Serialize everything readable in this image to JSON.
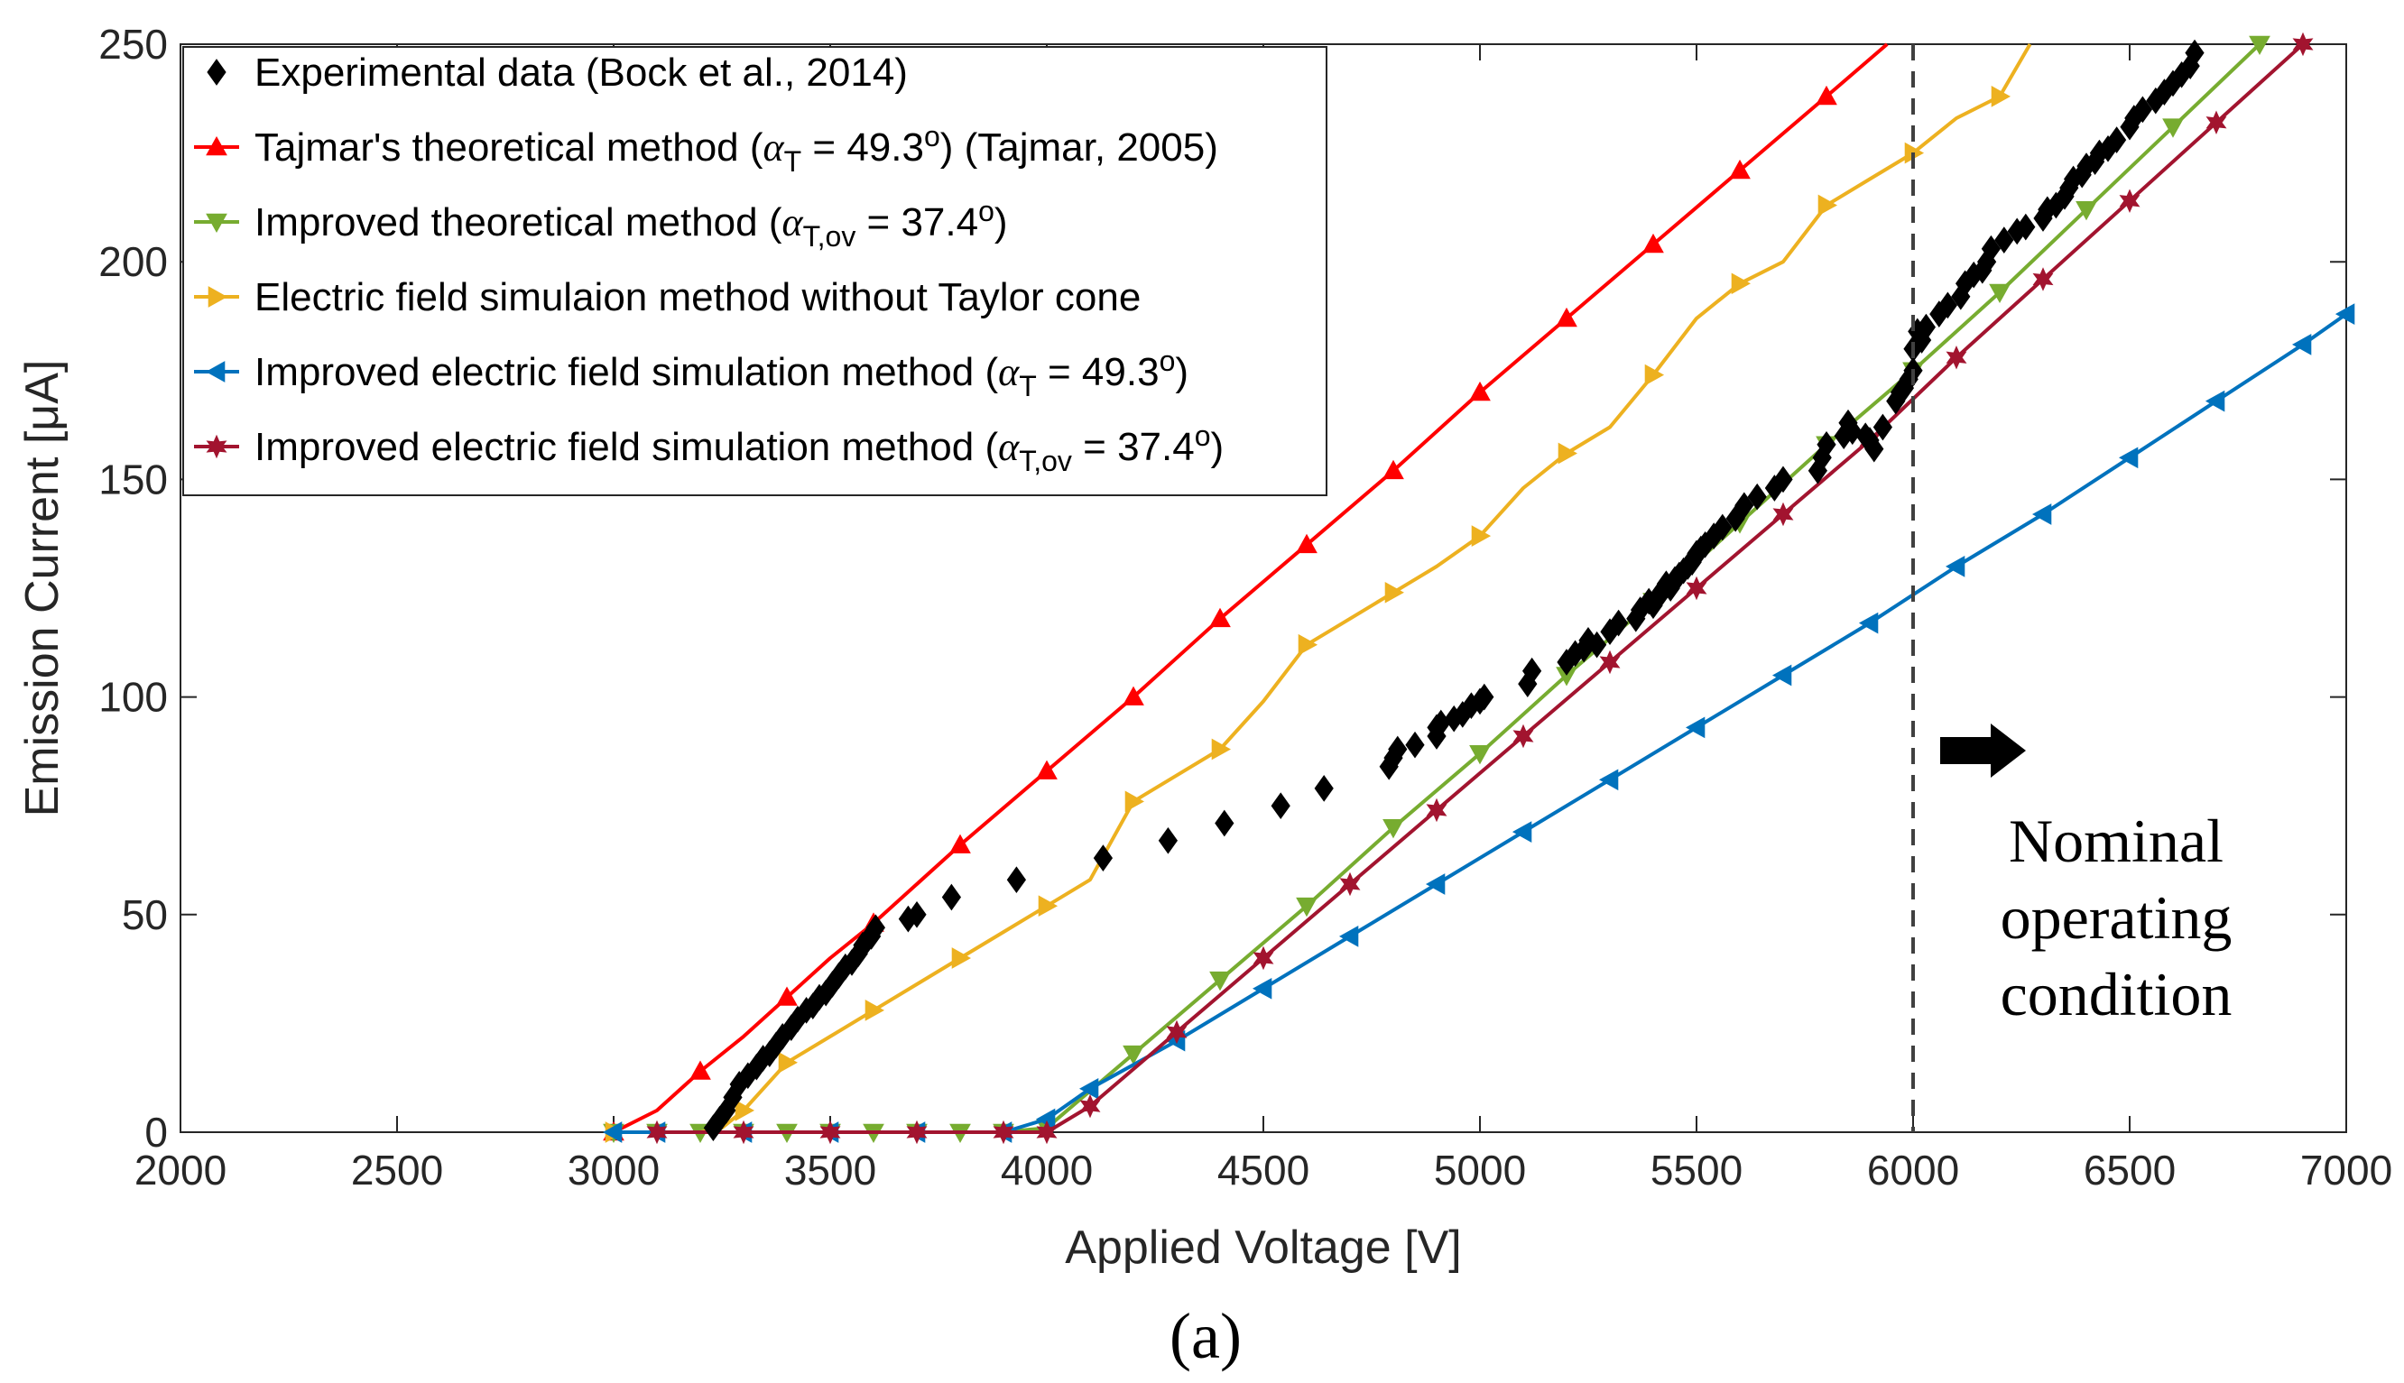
{
  "chart_data": {
    "type": "line",
    "xlabel": "Applied Voltage [V]",
    "ylabel": "Emission Current [μA]",
    "xlim": [
      2000,
      7000
    ],
    "ylim": [
      0,
      250
    ],
    "xticks": [
      2000,
      2500,
      3000,
      3500,
      4000,
      4500,
      5000,
      5500,
      6000,
      6500,
      7000
    ],
    "yticks": [
      0,
      50,
      100,
      150,
      200,
      250
    ],
    "grid": false,
    "legend_position": "top-left",
    "caption": "(a)",
    "annotation": {
      "lines": [
        "Nominal",
        "operating",
        "condition"
      ],
      "arrow": "right-arrow",
      "marker_x": 6000
    },
    "series": [
      {
        "name": "Experimental data (Bock et al., 2014)",
        "color": "#000000",
        "marker": "diamond",
        "line": false,
        "x": [
          3230,
          3245,
          3260,
          3275,
          3290,
          3310,
          3330,
          3345,
          3360,
          3375,
          3390,
          3410,
          3425,
          3445,
          3460,
          3475,
          3490,
          3505,
          3520,
          3535,
          3550,
          3565,
          3575,
          3585,
          3595,
          3605,
          3680,
          3700,
          3780,
          3930,
          4130,
          4280,
          4410,
          4540,
          4640,
          4790,
          4800,
          4810,
          4850,
          4900,
          4900,
          4910,
          4940,
          4960,
          4980,
          5000,
          5010,
          5110,
          5120,
          5200,
          5220,
          5240,
          5250,
          5270,
          5300,
          5320,
          5360,
          5370,
          5390,
          5400,
          5410,
          5420,
          5430,
          5440,
          5450,
          5460,
          5470,
          5480,
          5490,
          5500,
          5510,
          5520,
          5540,
          5560,
          5590,
          5610,
          5640,
          5680,
          5700,
          5780,
          5790,
          5800,
          5840,
          5850,
          5860,
          5890,
          5900,
          5910,
          5930,
          5960,
          5970,
          5980,
          5990,
          6000,
          6000,
          6010,
          6020,
          6030,
          6060,
          6080,
          6110,
          6120,
          6140,
          6160,
          6170,
          6180,
          6210,
          6240,
          6260,
          6300,
          6310,
          6330,
          6350,
          6360,
          6370,
          6390,
          6400,
          6420,
          6430,
          6450,
          6470,
          6500,
          6510,
          6530,
          6560,
          6580,
          6600,
          6620,
          6640,
          6650
        ],
        "y": [
          1,
          3,
          5,
          8,
          11,
          13,
          15,
          17,
          18,
          20,
          22,
          24,
          26,
          28,
          29,
          31,
          32,
          34,
          36,
          38,
          39,
          41,
          43,
          44,
          45,
          47,
          49,
          50,
          54,
          58,
          63,
          67,
          71,
          75,
          79,
          84,
          86,
          88,
          89,
          91,
          93,
          94,
          95,
          96,
          98,
          99,
          100,
          103,
          106,
          108,
          110,
          111,
          113,
          112,
          115,
          117,
          118,
          120,
          122,
          121,
          123,
          124,
          126,
          125,
          127,
          128,
          129,
          130,
          131,
          133,
          134,
          135,
          137,
          139,
          141,
          144,
          146,
          148,
          150,
          152,
          155,
          158,
          160,
          163,
          161,
          160,
          159,
          157,
          162,
          168,
          170,
          171,
          173,
          175,
          180,
          184,
          182,
          185,
          188,
          190,
          192,
          195,
          197,
          198,
          200,
          203,
          205,
          207,
          208,
          210,
          212,
          213,
          215,
          217,
          219,
          220,
          222,
          223,
          225,
          226,
          228,
          231,
          233,
          235,
          237,
          239,
          241,
          243,
          245,
          248
        ]
      },
      {
        "name": "Tajmar's theoretical method (αT = 49.3°) (Tajmar, 2005)",
        "color": "#ff0000",
        "marker": "triangle-up",
        "line": true,
        "x": [
          3000,
          3100,
          3200,
          3300,
          3400,
          3500,
          3600,
          3800,
          4000,
          4200,
          4400,
          4600,
          4800,
          5000,
          5200,
          5400,
          5600,
          5800,
          5940
        ],
        "y": [
          0,
          5,
          14,
          22,
          31,
          40,
          48,
          66,
          83,
          100,
          118,
          135,
          152,
          170,
          187,
          204,
          221,
          238,
          250
        ],
        "markers_at": [
          3000,
          3200,
          3400,
          3600,
          3800,
          4000,
          4200,
          4400,
          4600,
          4800,
          5000,
          5200,
          5400,
          5600,
          5800
        ]
      },
      {
        "name": "Improved theoretical method (αT,ov = 37.4°)",
        "color": "#77ac30",
        "marker": "triangle-down",
        "line": true,
        "x": [
          3000,
          3100,
          3200,
          3300,
          3400,
          3500,
          3600,
          3700,
          3800,
          3900,
          4000,
          4200,
          4400,
          4600,
          4800,
          5000,
          5200,
          5400,
          5600,
          5800,
          6000,
          6200,
          6400,
          6600,
          6800
        ],
        "y": [
          0,
          0,
          0,
          0,
          0,
          0,
          0,
          0,
          0,
          0,
          1,
          18,
          35,
          52,
          70,
          87,
          105,
          122,
          140,
          158,
          175,
          193,
          212,
          231,
          250
        ]
      },
      {
        "name": "Electric field simulaion method without Taylor cone",
        "color": "#edb120",
        "marker": "triangle-right",
        "line": true,
        "x": [
          3000,
          3100,
          3200,
          3250,
          3300,
          3400,
          3500,
          3600,
          3700,
          3800,
          3900,
          4000,
          4100,
          4200,
          4300,
          4400,
          4500,
          4600,
          4700,
          4800,
          4900,
          5000,
          5100,
          5200,
          5300,
          5400,
          5500,
          5600,
          5700,
          5800,
          5900,
          6000,
          6100,
          6200,
          6270
        ],
        "y": [
          0,
          0,
          0,
          1,
          5,
          16,
          22,
          28,
          34,
          40,
          46,
          52,
          58,
          76,
          82,
          88,
          99,
          112,
          118,
          124,
          130,
          137,
          148,
          156,
          162,
          174,
          187,
          195,
          200,
          213,
          219,
          225,
          233,
          238,
          250
        ],
        "markers_at": [
          3000,
          3300,
          3400,
          3600,
          3800,
          4000,
          4200,
          4400,
          4600,
          4800,
          5000,
          5200,
          5400,
          5600,
          5800,
          6000,
          6200
        ]
      },
      {
        "name": "Improved electric field simulation method (αT = 49.3°)",
        "color": "#0072bd",
        "marker": "triangle-left",
        "line": true,
        "x": [
          3000,
          3100,
          3300,
          3500,
          3700,
          3900,
          4000,
          4100,
          4300,
          4500,
          4700,
          4900,
          5100,
          5300,
          5500,
          5700,
          5900,
          6100,
          6300,
          6500,
          6700,
          6900,
          7000
        ],
        "y": [
          0,
          0,
          0,
          0,
          0,
          0,
          3,
          10,
          21,
          33,
          45,
          57,
          69,
          81,
          93,
          105,
          117,
          130,
          142,
          155,
          168,
          181,
          188
        ]
      },
      {
        "name": "Improved electric field simulation method (αT,ov = 37.4°)",
        "color": "#a2142f",
        "marker": "hexagram",
        "line": true,
        "x": [
          3100,
          3300,
          3500,
          3700,
          3900,
          4000,
          4100,
          4300,
          4500,
          4700,
          4900,
          5100,
          5300,
          5500,
          5700,
          5900,
          6100,
          6300,
          6500,
          6700,
          6900
        ],
        "y": [
          0,
          0,
          0,
          0,
          0,
          0,
          6,
          23,
          40,
          57,
          74,
          91,
          108,
          125,
          142,
          159,
          178,
          196,
          214,
          232,
          250
        ]
      }
    ]
  }
}
